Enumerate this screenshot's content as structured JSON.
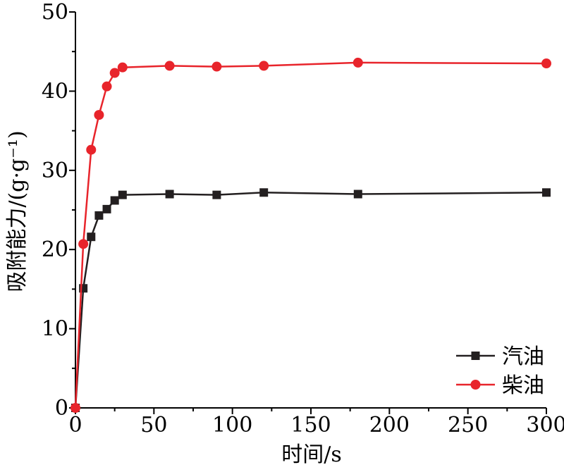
{
  "chart_data": {
    "type": "line",
    "xlabel": "时间/s",
    "ylabel": "吸附能力/(g·g⁻¹)",
    "xlim": [
      0,
      300
    ],
    "ylim": [
      0,
      50
    ],
    "xticks": [
      0,
      50,
      100,
      150,
      200,
      250,
      300
    ],
    "yticks": [
      0,
      10,
      20,
      30,
      40,
      50
    ],
    "grid": false,
    "legend_position": "bottom-right",
    "series": [
      {
        "name": "汽油",
        "color": "#231f20",
        "marker": "square",
        "x": [
          0,
          5,
          10,
          15,
          20,
          25,
          30,
          60,
          90,
          120,
          180,
          300
        ],
        "y": [
          0,
          15.1,
          21.6,
          24.3,
          25.1,
          26.2,
          26.9,
          27.0,
          26.9,
          27.2,
          27.0,
          27.2
        ]
      },
      {
        "name": "柴油",
        "color": "#e8242b",
        "marker": "circle",
        "x": [
          0,
          5,
          10,
          15,
          20,
          25,
          30,
          60,
          90,
          120,
          180,
          300
        ],
        "y": [
          0,
          20.7,
          32.6,
          37.0,
          40.6,
          42.3,
          43.0,
          43.2,
          43.1,
          43.2,
          43.6,
          43.5
        ]
      }
    ]
  }
}
